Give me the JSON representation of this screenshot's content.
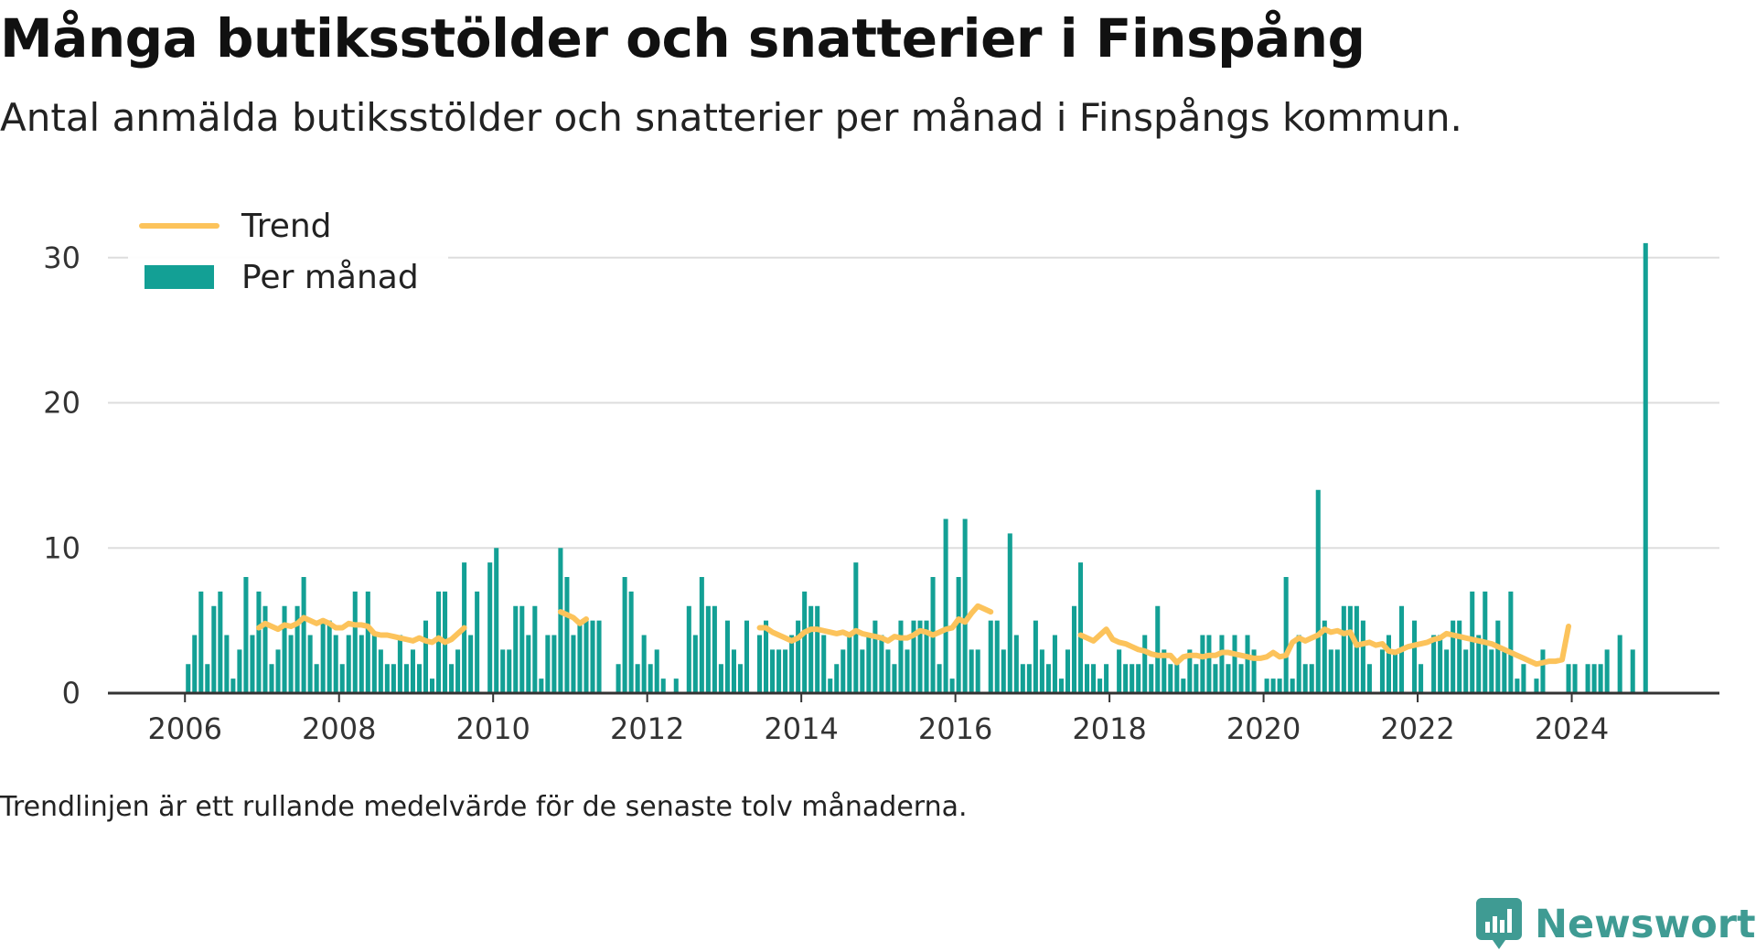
{
  "title": "Många butiksstölder och snatterier i Finspång",
  "subtitle": "Antal anmälda butiksstölder och snatterier per månad i Finspångs kommun.",
  "caption": "Trendlinjen är ett rullande medelvärde för de senaste tolv månaderna.",
  "brand": "Newsworthy",
  "colors": {
    "bars": "#13a095",
    "trend": "#fcc35b",
    "grid": "#dddddd",
    "axis": "#333333",
    "brand": "#3f9b93"
  },
  "legend": {
    "position": "top-left",
    "trend_label": "Trend",
    "bars_label": "Per månad"
  },
  "chart_data": {
    "type": "bar",
    "x_start": "2006-01",
    "x_end": "2024-11",
    "xlim": [
      "2005-01",
      "2025-12"
    ],
    "ylim": [
      0,
      32
    ],
    "grid": true,
    "x_ticks": [
      "2006",
      "2008",
      "2010",
      "2012",
      "2014",
      "2016",
      "2018",
      "2020",
      "2022",
      "2024"
    ],
    "y_ticks": [
      "0",
      "10",
      "20",
      "30"
    ],
    "series": [
      {
        "name": "Per månad",
        "type": "bar",
        "values": [
          2,
          4,
          7,
          2,
          6,
          7,
          4,
          1,
          3,
          8,
          4,
          7,
          6,
          2,
          3,
          6,
          4,
          6,
          8,
          4,
          2,
          5,
          5,
          4,
          2,
          4,
          7,
          4,
          7,
          4,
          3,
          2,
          2,
          4,
          2,
          3,
          2,
          5,
          1,
          7,
          7,
          2,
          3,
          9,
          4,
          7,
          0,
          9,
          10,
          3,
          3,
          6,
          6,
          4,
          6,
          1,
          4,
          4,
          10,
          8,
          4,
          5,
          5,
          5,
          5,
          0,
          0,
          2,
          8,
          7,
          2,
          4,
          2,
          3,
          1,
          0,
          1,
          0,
          6,
          4,
          8,
          6,
          6,
          2,
          5,
          3,
          2,
          5,
          0,
          4,
          5,
          3,
          3,
          3,
          4,
          5,
          7,
          6,
          6,
          4,
          1,
          2,
          3,
          4,
          9,
          3,
          4,
          5,
          4,
          3,
          2,
          5,
          3,
          5,
          5,
          5,
          8,
          2,
          12,
          1,
          8,
          12,
          3,
          3,
          0,
          5,
          5,
          3,
          11,
          4,
          2,
          2,
          5,
          3,
          2,
          4,
          1,
          3,
          6,
          9,
          2,
          2,
          1,
          2,
          0,
          3,
          2,
          2,
          2,
          4,
          2,
          6,
          3,
          2,
          2,
          1,
          3,
          2,
          4,
          4,
          2,
          4,
          2,
          4,
          2,
          4,
          3,
          0,
          1,
          1,
          1,
          8,
          1,
          4,
          2,
          2,
          14,
          5,
          3,
          3,
          6,
          6,
          6,
          5,
          2,
          0,
          3,
          4,
          3,
          6,
          0,
          5,
          2,
          0,
          4,
          4,
          3,
          5,
          5,
          3,
          7,
          4,
          7,
          3,
          5,
          3,
          7,
          1,
          2,
          0,
          1,
          3,
          0,
          0,
          0,
          2,
          2,
          0,
          2,
          2,
          2,
          3,
          0,
          4,
          0,
          3,
          0,
          31
        ]
      },
      {
        "name": "Trend",
        "type": "line",
        "values": [
          null,
          null,
          null,
          null,
          null,
          null,
          null,
          null,
          null,
          null,
          null,
          4.5,
          4.8,
          4.6,
          4.4,
          4.7,
          4.6,
          4.8,
          5.2,
          5.0,
          4.8,
          5.0,
          4.8,
          4.5,
          4.5,
          4.8,
          4.7,
          4.7,
          4.6,
          4.1,
          4.0,
          4.0,
          3.9,
          3.8,
          3.7,
          3.6,
          3.8,
          3.6,
          3.5,
          3.8,
          3.5,
          3.7,
          4.1,
          4.5,
          null,
          null,
          null,
          null,
          null,
          null,
          null,
          null,
          null,
          null,
          null,
          null,
          null,
          null,
          5.6,
          5.4,
          5.2,
          4.8,
          5.1,
          null,
          null,
          null,
          null,
          null,
          null,
          null,
          null,
          null,
          null,
          null,
          null,
          null,
          null,
          null,
          null,
          null,
          null,
          null,
          null,
          null,
          null,
          null,
          null,
          null,
          null,
          4.5,
          4.5,
          4.2,
          4.0,
          3.8,
          3.6,
          3.8,
          4.2,
          4.4,
          4.4,
          4.3,
          4.2,
          4.1,
          4.2,
          4.0,
          4.3,
          4.1,
          4.0,
          3.9,
          3.8,
          3.6,
          3.9,
          3.8,
          3.8,
          4.0,
          4.3,
          4.2,
          4.0,
          4.2,
          4.4,
          4.5,
          5.1,
          4.9,
          5.5,
          6.0,
          5.8,
          5.6,
          null,
          null,
          null,
          null,
          null,
          null,
          null,
          null,
          null,
          null,
          null,
          null,
          null,
          4.0,
          3.8,
          3.6,
          4.0,
          4.4,
          3.7,
          3.5,
          3.4,
          3.2,
          3.0,
          2.9,
          2.7,
          2.6,
          2.6,
          2.6,
          2.1,
          2.5,
          2.6,
          2.6,
          2.5,
          2.6,
          2.6,
          2.8,
          2.8,
          2.7,
          2.6,
          2.5,
          2.4,
          2.4,
          2.5,
          2.8,
          2.5,
          2.6,
          3.5,
          3.8,
          3.6,
          3.8,
          4.0,
          4.4,
          4.2,
          4.3,
          4.1,
          4.2,
          3.3,
          3.4,
          3.5,
          3.3,
          3.4,
          2.9,
          2.8,
          3.0,
          3.2,
          3.3,
          3.4,
          3.5,
          3.7,
          3.8,
          4.1,
          4.0,
          3.9,
          3.8,
          3.7,
          3.6,
          3.5,
          3.4,
          3.2,
          3.0,
          2.8,
          2.6,
          2.4,
          2.2,
          2.0,
          2.1,
          2.2,
          2.2,
          2.3,
          4.6
        ]
      }
    ]
  }
}
